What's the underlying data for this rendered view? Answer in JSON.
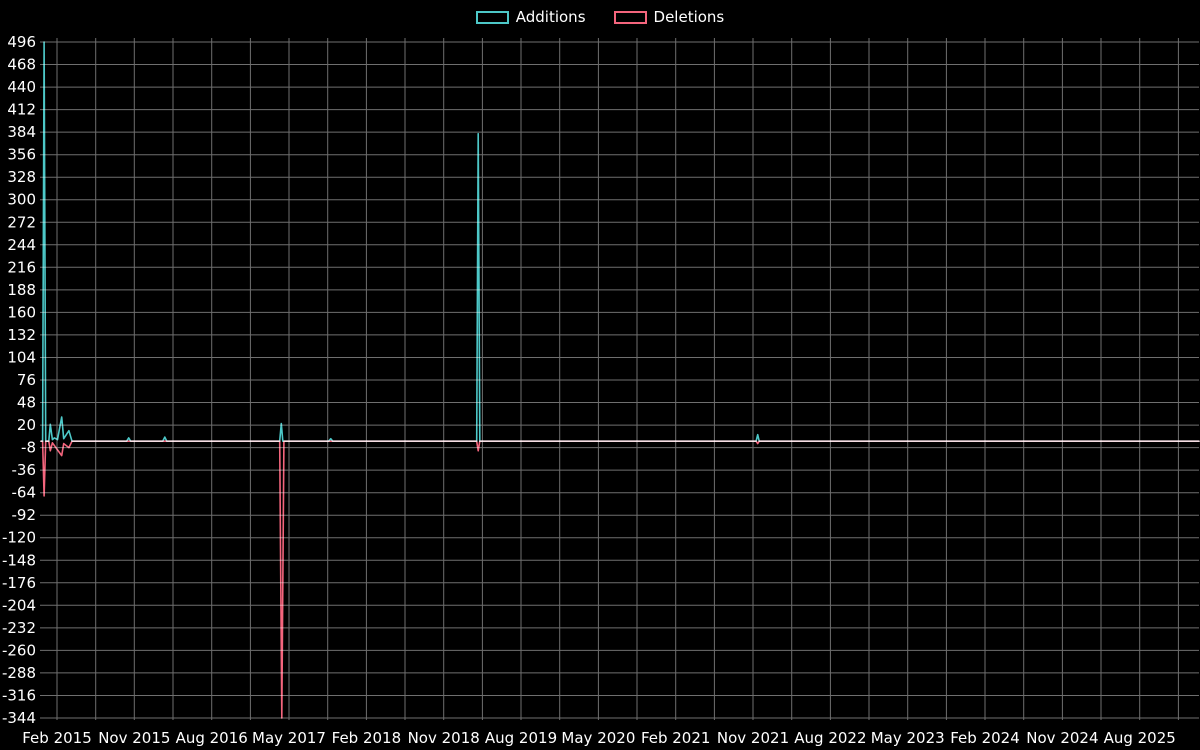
{
  "legend": {
    "items": [
      {
        "label": "Additions"
      },
      {
        "label": "Deletions"
      }
    ]
  },
  "chart_data": {
    "type": "line",
    "title": "",
    "xlabel": "",
    "ylabel": "",
    "background": "#000000",
    "grid_color": "#6f6f6f",
    "text_color": "#ffffff",
    "legend_position": "top-center",
    "grid": true,
    "xlim": [
      2014.96,
      2026.2
    ],
    "ylim": [
      -344,
      496
    ],
    "y_ticks": [
      496,
      468,
      440,
      412,
      384,
      356,
      328,
      300,
      272,
      244,
      216,
      188,
      160,
      132,
      104,
      76,
      48,
      20,
      -8,
      -36,
      -64,
      -92,
      -120,
      -148,
      -176,
      -204,
      -232,
      -260,
      -288,
      -316,
      -344
    ],
    "x_ticks": [
      {
        "label": "Feb 2015",
        "x": 2015.125
      },
      {
        "label": "Nov 2015",
        "x": 2015.875
      },
      {
        "label": "Aug 2016",
        "x": 2016.625
      },
      {
        "label": "May 2017",
        "x": 2017.375
      },
      {
        "label": "Feb 2018",
        "x": 2018.125
      },
      {
        "label": "Nov 2018",
        "x": 2018.875
      },
      {
        "label": "Aug 2019",
        "x": 2019.625
      },
      {
        "label": "May 2020",
        "x": 2020.375
      },
      {
        "label": "Feb 2021",
        "x": 2021.125
      },
      {
        "label": "Nov 2021",
        "x": 2021.875
      },
      {
        "label": "Aug 2022",
        "x": 2022.625
      },
      {
        "label": "May 2023",
        "x": 2023.375
      },
      {
        "label": "Feb 2024",
        "x": 2024.125
      },
      {
        "label": "Nov 2024",
        "x": 2024.875
      },
      {
        "label": "Aug 2025",
        "x": 2025.625
      }
    ],
    "x_grid": {
      "start": 2015.125,
      "step": 0.375
    },
    "series": [
      {
        "name": "Additions",
        "color": "#4dc8c8",
        "points": [
          [
            2014.97,
            0
          ],
          [
            2014.985,
            0
          ],
          [
            2015.0,
            496
          ],
          [
            2015.015,
            0
          ],
          [
            2015.045,
            0
          ],
          [
            2015.06,
            21
          ],
          [
            2015.08,
            2
          ],
          [
            2015.1,
            4
          ],
          [
            2015.13,
            2
          ],
          [
            2015.17,
            30
          ],
          [
            2015.19,
            3
          ],
          [
            2015.24,
            13
          ],
          [
            2015.27,
            0
          ],
          [
            2015.8,
            0
          ],
          [
            2015.82,
            4
          ],
          [
            2015.84,
            0
          ],
          [
            2016.15,
            0
          ],
          [
            2016.17,
            5
          ],
          [
            2016.19,
            0
          ],
          [
            2017.285,
            0
          ],
          [
            2017.3,
            22
          ],
          [
            2017.315,
            0
          ],
          [
            2017.76,
            0
          ],
          [
            2017.78,
            3
          ],
          [
            2017.8,
            0
          ],
          [
            2019.195,
            0
          ],
          [
            2019.21,
            382
          ],
          [
            2019.225,
            0
          ],
          [
            2021.905,
            0
          ],
          [
            2021.92,
            8
          ],
          [
            2021.935,
            0
          ],
          [
            2026.2,
            0
          ]
        ]
      },
      {
        "name": "Deletions",
        "color": "#f4657d",
        "points": [
          [
            2014.97,
            0
          ],
          [
            2014.985,
            0
          ],
          [
            2015.0,
            -68
          ],
          [
            2015.015,
            0
          ],
          [
            2015.045,
            0
          ],
          [
            2015.06,
            -12
          ],
          [
            2015.08,
            -2
          ],
          [
            2015.17,
            -18
          ],
          [
            2015.19,
            -3
          ],
          [
            2015.24,
            -8
          ],
          [
            2015.27,
            0
          ],
          [
            2017.285,
            0
          ],
          [
            2017.305,
            -344
          ],
          [
            2017.325,
            0
          ],
          [
            2019.195,
            0
          ],
          [
            2019.21,
            -12
          ],
          [
            2019.225,
            0
          ],
          [
            2021.905,
            0
          ],
          [
            2021.92,
            -3
          ],
          [
            2021.935,
            0
          ],
          [
            2026.2,
            0
          ]
        ]
      }
    ]
  }
}
